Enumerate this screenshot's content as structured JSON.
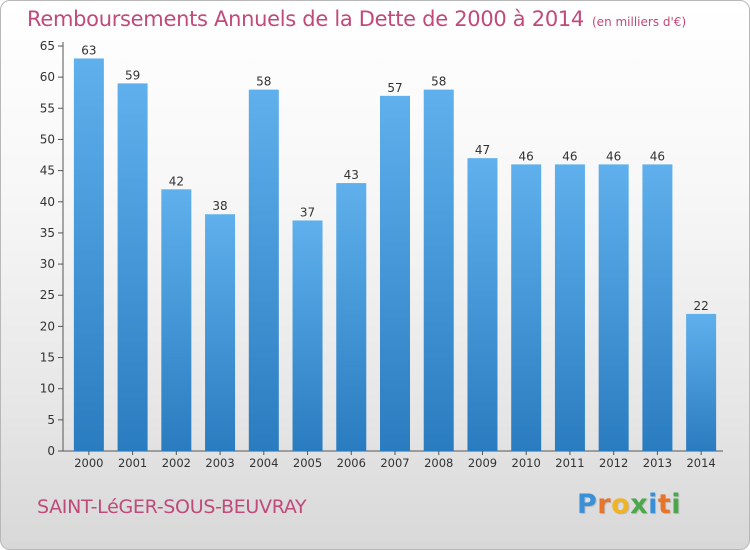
{
  "title": "Remboursements Annuels de la Dette de 2000 à 2014",
  "unit_label": "(en milliers d'€)",
  "footer": {
    "city": "SAINT-LéGER-SOUS-BEUVRAY",
    "logo_letters": [
      "P",
      "r",
      "o",
      "x",
      "i",
      "t",
      "i"
    ]
  },
  "colors": {
    "title": "#c04a7a",
    "bar_top": "#5fb0ec",
    "bar_bottom": "#2a7cc0",
    "logo": [
      "#3a8fd6",
      "#e8742a",
      "#f0b323",
      "#4aa84a",
      "#3a8fd6",
      "#e8742a",
      "#4aa84a"
    ]
  },
  "chart_data": {
    "type": "bar",
    "categories": [
      "2000",
      "2001",
      "2002",
      "2003",
      "2004",
      "2005",
      "2006",
      "2007",
      "2008",
      "2009",
      "2010",
      "2011",
      "2012",
      "2013",
      "2014"
    ],
    "values": [
      63,
      59,
      42,
      38,
      58,
      37,
      43,
      57,
      58,
      47,
      46,
      46,
      46,
      46,
      22
    ],
    "yticks": [
      0,
      5,
      10,
      15,
      20,
      25,
      30,
      35,
      40,
      45,
      50,
      55,
      60,
      65
    ],
    "ylim": [
      0,
      65
    ],
    "grid": false,
    "data_labels": true
  }
}
